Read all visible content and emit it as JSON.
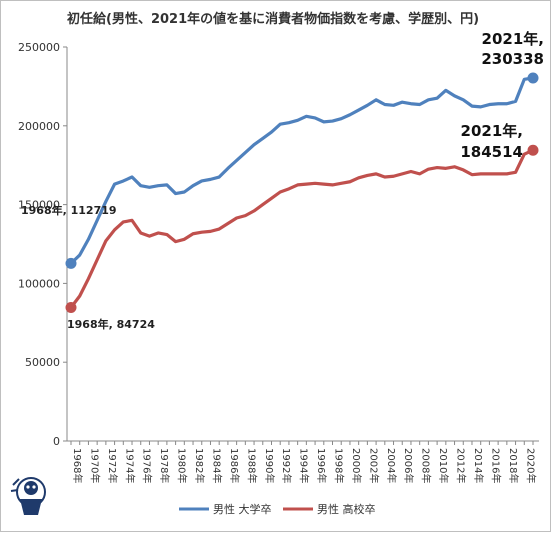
{
  "chart_data": {
    "type": "line",
    "title": "初任給(男性、2021年の値を基に消費者物価指数を考慮、学歴別、円)",
    "xlabel": "",
    "ylabel": "",
    "ylim": [
      0,
      250000
    ],
    "yticks": [
      0,
      50000,
      100000,
      150000,
      200000,
      250000
    ],
    "grid": false,
    "legend_position": "bottom",
    "x": [
      1968,
      1969,
      1970,
      1971,
      1972,
      1973,
      1974,
      1975,
      1976,
      1977,
      1978,
      1979,
      1980,
      1981,
      1982,
      1983,
      1984,
      1985,
      1986,
      1987,
      1988,
      1989,
      1990,
      1991,
      1992,
      1993,
      1994,
      1995,
      1996,
      1997,
      1998,
      1999,
      2000,
      2001,
      2002,
      2003,
      2004,
      2005,
      2006,
      2007,
      2008,
      2009,
      2010,
      2011,
      2012,
      2013,
      2014,
      2015,
      2016,
      2017,
      2018,
      2019,
      2020,
      2021
    ],
    "xtick_labels": [
      "1968年",
      "1970年",
      "1972年",
      "1974年",
      "1976年",
      "1978年",
      "1980年",
      "1982年",
      "1984年",
      "1986年",
      "1988年",
      "1990年",
      "1992年",
      "1994年",
      "1996年",
      "1998年",
      "2000年",
      "2002年",
      "2004年",
      "2006年",
      "2008年",
      "2010年",
      "2012年",
      "2014年",
      "2016年",
      "2018年",
      "2020年"
    ],
    "series": [
      {
        "name": "男性 大学卒",
        "color": "#4f81bd",
        "values": [
          112719,
          118000,
          128000,
          140000,
          152000,
          163000,
          165000,
          167500,
          162000,
          161000,
          162000,
          162500,
          157000,
          158000,
          162000,
          165000,
          166000,
          167500,
          173000,
          178000,
          183000,
          188000,
          192000,
          196000,
          201000,
          202000,
          203500,
          206000,
          205000,
          202500,
          203000,
          204500,
          207000,
          210000,
          213000,
          216500,
          213500,
          213000,
          215000,
          214000,
          213500,
          216500,
          217500,
          222500,
          219000,
          216500,
          212500,
          212000,
          213500,
          214000,
          214000,
          215500,
          229500,
          230338
        ]
      },
      {
        "name": "男性 高校卒",
        "color": "#c0504d",
        "values": [
          84724,
          92000,
          103000,
          115000,
          127000,
          134000,
          139000,
          140000,
          132000,
          130000,
          132000,
          131000,
          126500,
          128000,
          131500,
          132500,
          133000,
          134500,
          138000,
          141500,
          143000,
          146000,
          150000,
          154000,
          158000,
          160000,
          162500,
          163000,
          163500,
          163000,
          162500,
          163500,
          164500,
          167000,
          168500,
          169500,
          167500,
          168000,
          169500,
          171000,
          169500,
          172500,
          173500,
          173000,
          174000,
          172000,
          169000,
          169500,
          169500,
          169500,
          169500,
          170500,
          182000,
          184514
        ]
      }
    ],
    "annotations": [
      {
        "text": "1968年, 112719",
        "series": 0,
        "x": 1968
      },
      {
        "text": "1968年, 84724",
        "series": 1,
        "x": 1968
      },
      {
        "text_line1": "2021年,",
        "text_line2": "230338",
        "series": 0,
        "x": 2021
      },
      {
        "text_line1": "2021年,",
        "text_line2": "184514",
        "series": 1,
        "x": 2021
      }
    ]
  }
}
